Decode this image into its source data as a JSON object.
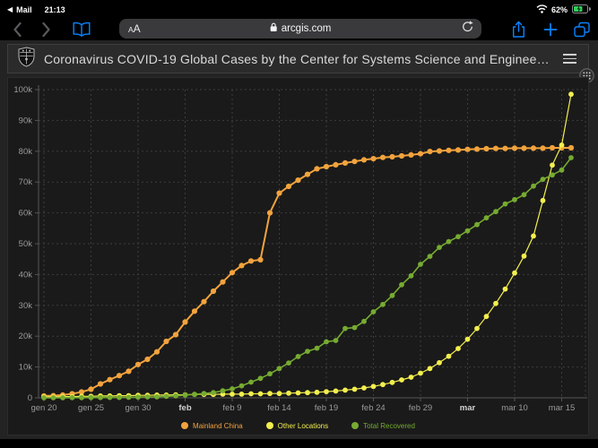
{
  "status_bar": {
    "back_app_label": "Mail",
    "time": "21:13",
    "battery_percent": "62%",
    "icons": [
      "wifi-icon",
      "battery-icon"
    ]
  },
  "toolbar": {
    "reader_label_small": "A",
    "reader_label_large": "A",
    "url": "arcgis.com",
    "icons": [
      "back-icon",
      "forward-icon",
      "bookmarks-icon",
      "lock-icon",
      "reload-icon",
      "share-icon",
      "new-tab-icon",
      "tabs-icon"
    ],
    "accent_color": "#0a84ff"
  },
  "page_header": {
    "title": "Coronavirus COVID-19 Global Cases by the Center for Systems Science and Engineer…",
    "icons": [
      "site-logo-shield-icon",
      "menu-icon",
      "grip-icon"
    ]
  },
  "chart_data": {
    "type": "line",
    "title": "",
    "xlabel": "",
    "ylabel": "",
    "ylim": [
      0,
      100000
    ],
    "grid": true,
    "legend_position": "bottom",
    "y_tick_labels": [
      "0",
      "10k",
      "20k",
      "30k",
      "40k",
      "50k",
      "60k",
      "70k",
      "80k",
      "90k",
      "100k"
    ],
    "x_ticks": [
      {
        "i": 0,
        "label": "gen 20",
        "bold": false
      },
      {
        "i": 5,
        "label": "gen 25",
        "bold": false
      },
      {
        "i": 10,
        "label": "gen 30",
        "bold": false
      },
      {
        "i": 15,
        "label": "feb",
        "bold": true
      },
      {
        "i": 20,
        "label": "feb 9",
        "bold": false
      },
      {
        "i": 25,
        "label": "feb 14",
        "bold": false
      },
      {
        "i": 30,
        "label": "feb 19",
        "bold": false
      },
      {
        "i": 35,
        "label": "feb 24",
        "bold": false
      },
      {
        "i": 40,
        "label": "feb 29",
        "bold": false
      },
      {
        "i": 45,
        "label": "mar",
        "bold": true
      },
      {
        "i": 50,
        "label": "mar 10",
        "bold": false
      },
      {
        "i": 55,
        "label": "mar 15",
        "bold": false
      }
    ],
    "dates": [
      "gen 20",
      "gen 21",
      "gen 22",
      "gen 23",
      "gen 24",
      "gen 25",
      "gen 26",
      "gen 27",
      "gen 28",
      "gen 29",
      "gen 30",
      "gen 31",
      "feb 1",
      "feb 2",
      "feb 3",
      "feb 4",
      "feb 5",
      "feb 6",
      "feb 7",
      "feb 8",
      "feb 9",
      "feb 10",
      "feb 11",
      "feb 12",
      "feb 13",
      "feb 14",
      "feb 15",
      "feb 16",
      "feb 17",
      "feb 18",
      "feb 19",
      "feb 20",
      "feb 21",
      "feb 22",
      "feb 23",
      "feb 24",
      "feb 25",
      "feb 26",
      "feb 27",
      "feb 28",
      "feb 29",
      "mar 1",
      "mar 2",
      "mar 3",
      "mar 4",
      "mar 5",
      "mar 6",
      "mar 7",
      "mar 8",
      "mar 9",
      "mar 10",
      "mar 11",
      "mar 12",
      "mar 13",
      "mar 14",
      "mar 15",
      "mar 16"
    ],
    "series": [
      {
        "name": "Mainland China",
        "color": "#f2a33d",
        "values": [
          600,
          700,
          900,
          1300,
          1900,
          2800,
          4500,
          5900,
          7200,
          8600,
          10800,
          12500,
          14900,
          18300,
          20500,
          24600,
          28100,
          31200,
          34600,
          37600,
          40600,
          42900,
          44400,
          44800,
          60000,
          66400,
          68600,
          70600,
          72500,
          74300,
          75000,
          75600,
          76200,
          76700,
          77200,
          77600,
          78000,
          78200,
          78500,
          78800,
          79200,
          79900,
          80100,
          80300,
          80400,
          80600,
          80700,
          80800,
          80900,
          80900,
          81000,
          81000,
          81000,
          81000,
          81100,
          81100,
          81100
        ]
      },
      {
        "name": "Other Locations",
        "color": "#f3ef4e",
        "values": [
          300,
          300,
          400,
          400,
          500,
          500,
          600,
          600,
          700,
          700,
          800,
          800,
          900,
          900,
          1000,
          1000,
          1100,
          1100,
          1100,
          1200,
          1200,
          1200,
          1300,
          1300,
          1400,
          1400,
          1500,
          1600,
          1700,
          1800,
          2000,
          2200,
          2500,
          2800,
          3200,
          3700,
          4300,
          5000,
          5800,
          6700,
          8000,
          9500,
          11400,
          13500,
          16000,
          19000,
          22500,
          26400,
          30600,
          35300,
          40500,
          46000,
          52500,
          64000,
          75500,
          82000,
          98500
        ]
      },
      {
        "name": "Total Recovered",
        "color": "#76ab31",
        "values": [
          30,
          30,
          40,
          50,
          60,
          80,
          100,
          110,
          130,
          170,
          220,
          280,
          330,
          480,
          630,
          900,
          1100,
          1400,
          1700,
          2300,
          2900,
          3900,
          5100,
          6300,
          7800,
          9500,
          11300,
          13400,
          15100,
          16100,
          18200,
          18600,
          22500,
          22800,
          24800,
          27900,
          30300,
          33200,
          36700,
          39600,
          43300,
          45900,
          48800,
          50700,
          52300,
          54200,
          56200,
          58400,
          60400,
          62900,
          64300,
          65900,
          68700,
          70900,
          72300,
          73900,
          77900
        ]
      }
    ]
  }
}
